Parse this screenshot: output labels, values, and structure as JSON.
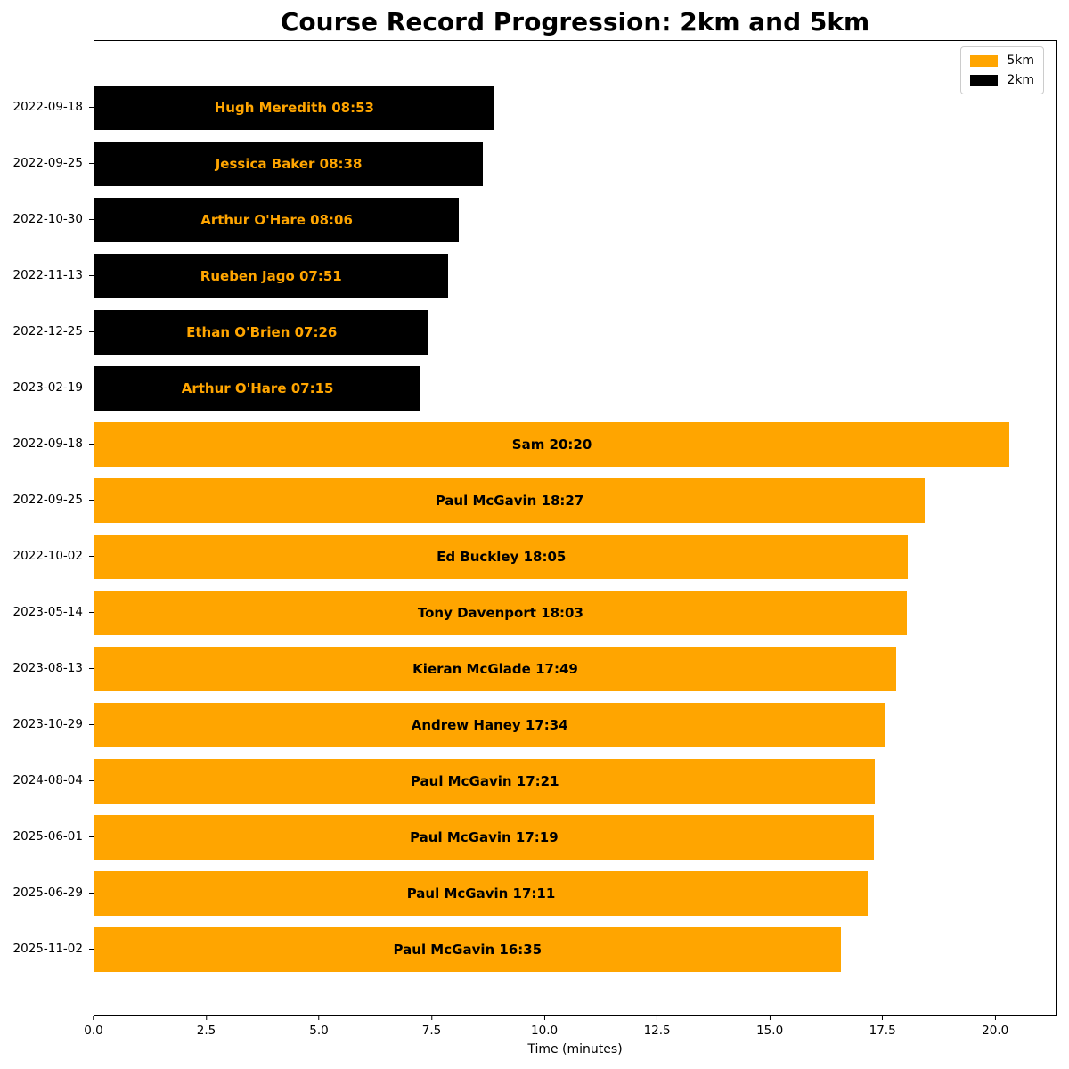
{
  "chart_data": {
    "type": "bar",
    "orientation": "horizontal",
    "title": "Course Record Progression: 2km and 5km",
    "xlabel": "Time (minutes)",
    "ylabel": "",
    "xlim": [
      0,
      21.36
    ],
    "grid": false,
    "xticks": {
      "values": [
        0,
        2.5,
        5,
        7.5,
        10,
        12.5,
        15,
        17.5,
        20
      ],
      "labels": [
        "0.0",
        "2.5",
        "5.0",
        "7.5",
        "10.0",
        "12.5",
        "15.0",
        "17.5",
        "20.0"
      ]
    },
    "legend": {
      "position": "upper right",
      "entries": [
        {
          "label": "5km",
          "color": "#FFA500"
        },
        {
          "label": "2km",
          "color": "#000000"
        }
      ]
    },
    "series_colors": {
      "5km": "#FFA500",
      "2km": "#000000"
    },
    "bar_label_colors": {
      "5km": "#000000",
      "2km": "#FFA500"
    },
    "bars": [
      {
        "date": "2022-09-18",
        "series": "2km",
        "runner": "Hugh Meredith",
        "time": "08:53",
        "label": "Hugh Meredith 08:53",
        "minutes": 8.883
      },
      {
        "date": "2022-09-25",
        "series": "2km",
        "runner": "Jessica Baker",
        "time": "08:38",
        "label": "Jessica Baker 08:38",
        "minutes": 8.633
      },
      {
        "date": "2022-10-30",
        "series": "2km",
        "runner": "Arthur O'Hare",
        "time": "08:06",
        "label": "Arthur O'Hare 08:06",
        "minutes": 8.1
      },
      {
        "date": "2022-11-13",
        "series": "2km",
        "runner": "Rueben Jago",
        "time": "07:51",
        "label": "Rueben Jago 07:51",
        "minutes": 7.85
      },
      {
        "date": "2022-12-25",
        "series": "2km",
        "runner": "Ethan O'Brien",
        "time": "07:26",
        "label": "Ethan O'Brien 07:26",
        "minutes": 7.433
      },
      {
        "date": "2023-02-19",
        "series": "2km",
        "runner": "Arthur O'Hare",
        "time": "07:15",
        "label": "Arthur O'Hare 07:15",
        "minutes": 7.25
      },
      {
        "date": "2022-09-18",
        "series": "5km",
        "runner": "Sam",
        "time": "20:20",
        "label": "Sam 20:20",
        "minutes": 20.333
      },
      {
        "date": "2022-09-25",
        "series": "5km",
        "runner": "Paul McGavin",
        "time": "18:27",
        "label": "Paul McGavin 18:27",
        "minutes": 18.45
      },
      {
        "date": "2022-10-02",
        "series": "5km",
        "runner": "Ed Buckley",
        "time": "18:05",
        "label": "Ed Buckley 18:05",
        "minutes": 18.083
      },
      {
        "date": "2023-05-14",
        "series": "5km",
        "runner": "Tony Davenport",
        "time": "18:03",
        "label": "Tony Davenport 18:03",
        "minutes": 18.05
      },
      {
        "date": "2023-08-13",
        "series": "5km",
        "runner": "Kieran McGlade",
        "time": "17:49",
        "label": "Kieran McGlade 17:49",
        "minutes": 17.817
      },
      {
        "date": "2023-10-29",
        "series": "5km",
        "runner": "Andrew Haney",
        "time": "17:34",
        "label": "Andrew Haney 17:34",
        "minutes": 17.567
      },
      {
        "date": "2024-08-04",
        "series": "5km",
        "runner": "Paul McGavin",
        "time": "17:21",
        "label": "Paul McGavin 17:21",
        "minutes": 17.35
      },
      {
        "date": "2025-06-01",
        "series": "5km",
        "runner": "Paul McGavin",
        "time": "17:19",
        "label": "Paul McGavin 17:19",
        "minutes": 17.317
      },
      {
        "date": "2025-06-29",
        "series": "5km",
        "runner": "Paul McGavin",
        "time": "17:11",
        "label": "Paul McGavin 17:11",
        "minutes": 17.183
      },
      {
        "date": "2025-11-02",
        "series": "5km",
        "runner": "Paul McGavin",
        "time": "16:35",
        "label": "Paul McGavin 16:35",
        "minutes": 16.583
      }
    ]
  }
}
